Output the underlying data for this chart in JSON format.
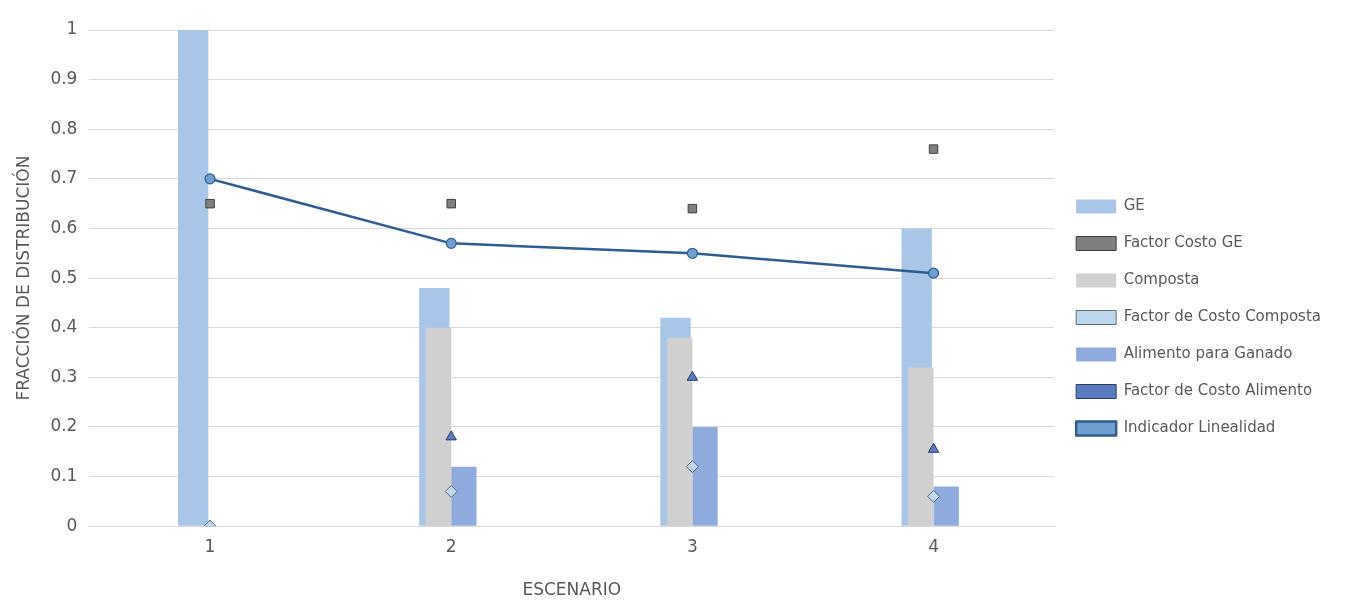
{
  "chart_data": {
    "type": "bar",
    "xlabel": "ESCENARIO",
    "ylabel": "FRACCIÓN DE DISTRIBUCIÓN",
    "categories": [
      "1",
      "2",
      "3",
      "4"
    ],
    "ylim": [
      0,
      1
    ],
    "yticks": [
      0,
      0.1,
      0.2,
      0.3,
      0.4,
      0.5,
      0.6,
      0.7,
      0.8,
      0.9,
      1
    ],
    "grid": "y",
    "legend": "right",
    "series": [
      {
        "name": "GE",
        "color": "#a9c6e8",
        "values": [
          1,
          0.48,
          0.42,
          0.6
        ]
      },
      {
        "name": "Factor Costo GE",
        "type": "scatter",
        "marker": "square",
        "color": "#7f7f7f",
        "values": [
          0.65,
          0.65,
          0.64,
          0.76
        ]
      },
      {
        "name": "Composta",
        "color": "#d0d0d0",
        "values": [
          0,
          0.4,
          0.38,
          0.32
        ]
      },
      {
        "name": "Factor de Costo Composta",
        "type": "scatter",
        "marker": "diamond",
        "color": "#bdd7ee",
        "values": [
          0,
          0.07,
          0.12,
          0.06
        ]
      },
      {
        "name": "Alimento para Ganado",
        "color": "#8faadc",
        "values": [
          0,
          0.12,
          0.2,
          0.08
        ]
      },
      {
        "name": "Factor de Costo Alimento",
        "type": "scatter",
        "marker": "triangle",
        "color": "#5a7bbf",
        "values": [
          0,
          0.18,
          0.3,
          0.155
        ]
      },
      {
        "name": "Indicador Linealidad",
        "type": "line",
        "marker": "circle",
        "color": "#2e5d8f",
        "values": [
          0.7,
          0.57,
          0.55,
          0.51
        ]
      }
    ]
  }
}
